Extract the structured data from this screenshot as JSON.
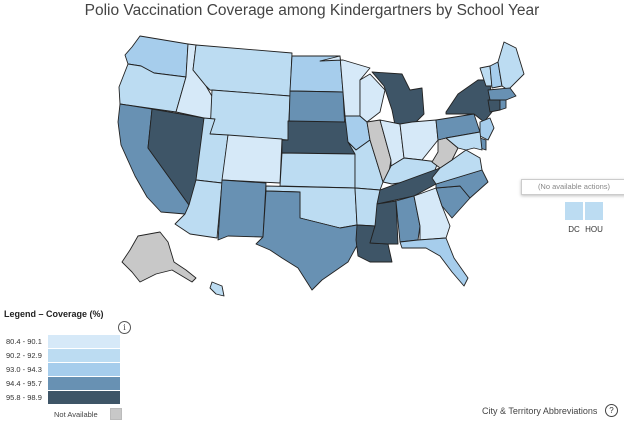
{
  "title": "Polio Vaccination Coverage among Kindergartners by School Year",
  "tooltip": "(No available actions)",
  "territories": [
    {
      "label": "DC",
      "bin": 1
    },
    {
      "label": "HOU",
      "bin": 1
    }
  ],
  "legend": {
    "title": "Legend – Coverage (%)",
    "info_icon": "i",
    "bins": [
      {
        "label": "80.4 - 90.1",
        "color": "#d6e9f8"
      },
      {
        "label": "90.2 - 92.9",
        "color": "#bcdcf2"
      },
      {
        "label": "93.0 - 94.3",
        "color": "#a6cdec"
      },
      {
        "label": "94.4 - 95.7",
        "color": "#6891b3"
      },
      {
        "label": "95.8 - 98.9",
        "color": "#3e5567"
      }
    ],
    "not_available_label": "Not Available",
    "not_available_color": "#c8c8c8"
  },
  "footer": {
    "link_text": "City & Territory Abbreviations",
    "help_icon": "?"
  },
  "states": {
    "WA": 2,
    "OR": 1,
    "CA": 3,
    "NV": 4,
    "ID": 0,
    "MT": 1,
    "WY": 1,
    "UT": 1,
    "AZ": 1,
    "CO": 0,
    "NM": 3,
    "ND": 2,
    "SD": 3,
    "NE": 4,
    "KS": 1,
    "OK": 1,
    "TX": 3,
    "MN": 0,
    "IA": 2,
    "MO": 1,
    "AR": 1,
    "LA": 4,
    "WI": 0,
    "IL": -1,
    "MI": 4,
    "IN": 0,
    "OH": 0,
    "KY": 1,
    "TN": 4,
    "MS": 4,
    "AL": 3,
    "GA": 0,
    "FL": 2,
    "SC": 3,
    "NC": 3,
    "VA": 1,
    "WV": -1,
    "PA": 3,
    "NY": 4,
    "ME": 1,
    "VT": 1,
    "NH": 2,
    "MA": 3,
    "RI": 3,
    "CT": 4,
    "NJ": 2,
    "DE": 3,
    "MD": 1,
    "AK": -1,
    "HI": 1
  }
}
